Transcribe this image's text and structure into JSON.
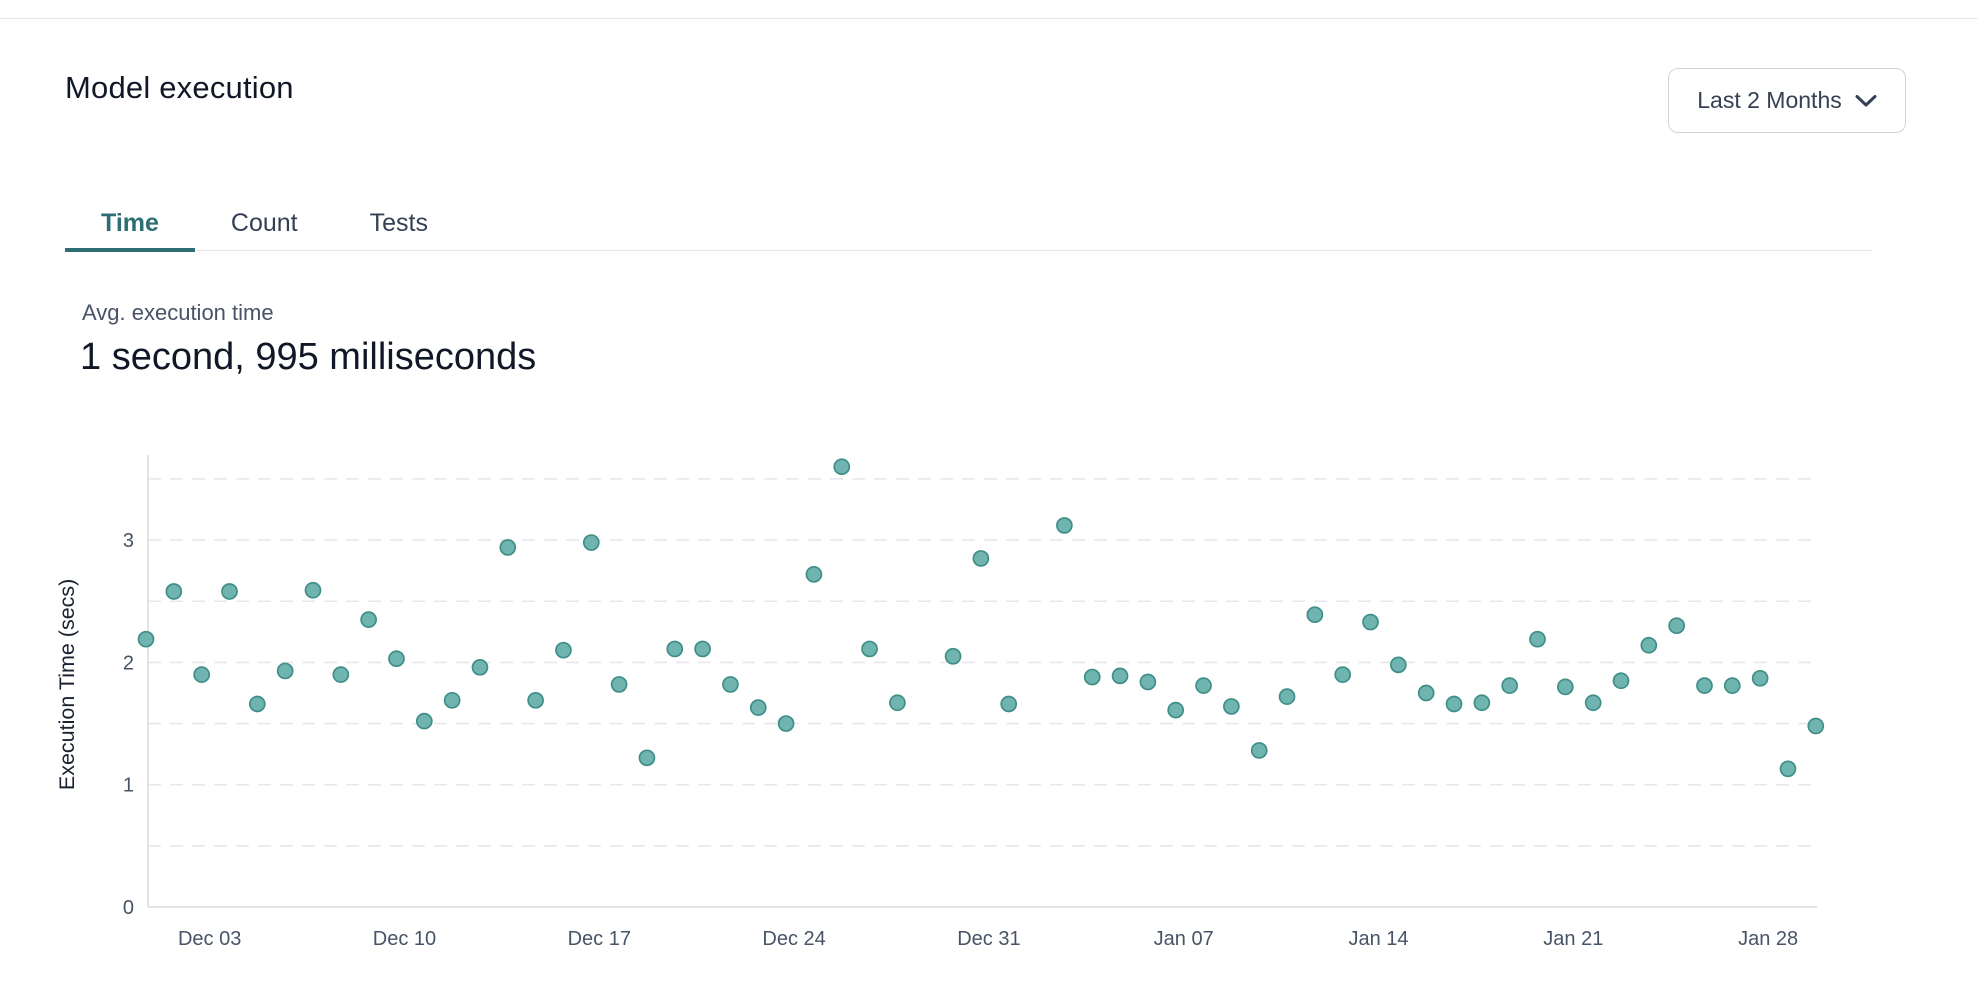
{
  "header": {
    "title": "Model execution",
    "range_selector": {
      "label": "Last 2 Months"
    }
  },
  "tabs": [
    {
      "label": "Time",
      "active": true
    },
    {
      "label": "Count",
      "active": false
    },
    {
      "label": "Tests",
      "active": false
    }
  ],
  "stat": {
    "label": "Avg. execution time",
    "value": "1 second, 995 milliseconds"
  },
  "chart_data": {
    "type": "scatter",
    "title": "",
    "xlabel": "",
    "ylabel": "Execution Time (secs)",
    "ylim": [
      0,
      3.7
    ],
    "y_ticks": [
      0,
      1,
      2,
      3
    ],
    "grid": {
      "style": "dashed-horizontal",
      "interval": 0.5,
      "min": 0.5,
      "max": 3.5
    },
    "legend": "none",
    "x_ticks": [
      {
        "day": 2,
        "label": "Dec 03"
      },
      {
        "day": 9,
        "label": "Dec 10"
      },
      {
        "day": 16,
        "label": "Dec 17"
      },
      {
        "day": 23,
        "label": "Dec 24"
      },
      {
        "day": 30,
        "label": "Dec 31"
      },
      {
        "day": 37,
        "label": "Jan 07"
      },
      {
        "day": 44,
        "label": "Jan 14"
      },
      {
        "day": 51,
        "label": "Jan 21"
      },
      {
        "day": 58,
        "label": "Jan 28"
      }
    ],
    "colors": {
      "point_fill": "#6fb4af",
      "point_stroke": "#3f8e88",
      "gridline": "#e7e7ed",
      "axis_line": "#d8dbe2",
      "tick_text": "#475467",
      "axis_label_text": "#1a2230"
    },
    "points": [
      {
        "day": 0,
        "date": "Dec 01",
        "secs": 2.19
      },
      {
        "day": 1,
        "date": "Dec 02",
        "secs": 2.58
      },
      {
        "day": 2,
        "date": "Dec 03",
        "secs": 1.9
      },
      {
        "day": 3,
        "date": "Dec 04",
        "secs": 2.58
      },
      {
        "day": 4,
        "date": "Dec 05",
        "secs": 1.66
      },
      {
        "day": 5,
        "date": "Dec 06",
        "secs": 1.93
      },
      {
        "day": 6,
        "date": "Dec 07",
        "secs": 2.59
      },
      {
        "day": 7,
        "date": "Dec 08",
        "secs": 1.9
      },
      {
        "day": 8,
        "date": "Dec 09",
        "secs": 2.35
      },
      {
        "day": 9,
        "date": "Dec 10",
        "secs": 2.03
      },
      {
        "day": 10,
        "date": "Dec 11",
        "secs": 1.52
      },
      {
        "day": 11,
        "date": "Dec 12",
        "secs": 1.69
      },
      {
        "day": 12,
        "date": "Dec 13",
        "secs": 1.96
      },
      {
        "day": 13,
        "date": "Dec 14",
        "secs": 2.94
      },
      {
        "day": 14,
        "date": "Dec 15",
        "secs": 1.69
      },
      {
        "day": 15,
        "date": "Dec 16",
        "secs": 2.1
      },
      {
        "day": 16,
        "date": "Dec 17",
        "secs": 2.98
      },
      {
        "day": 17,
        "date": "Dec 18",
        "secs": 1.82
      },
      {
        "day": 18,
        "date": "Dec 19",
        "secs": 1.22
      },
      {
        "day": 19,
        "date": "Dec 20",
        "secs": 2.11
      },
      {
        "day": 20,
        "date": "Dec 21",
        "secs": 2.11
      },
      {
        "day": 21,
        "date": "Dec 22",
        "secs": 1.82
      },
      {
        "day": 22,
        "date": "Dec 23",
        "secs": 1.63
      },
      {
        "day": 23,
        "date": "Dec 24",
        "secs": 1.5
      },
      {
        "day": 24,
        "date": "Dec 25",
        "secs": 2.72
      },
      {
        "day": 25,
        "date": "Dec 26",
        "secs": 3.6
      },
      {
        "day": 26,
        "date": "Dec 27",
        "secs": 2.11
      },
      {
        "day": 27,
        "date": "Dec 28",
        "secs": 1.67
      },
      {
        "day": 29,
        "date": "Dec 30",
        "secs": 2.05
      },
      {
        "day": 30,
        "date": "Dec 31",
        "secs": 2.85
      },
      {
        "day": 31,
        "date": "Jan 01",
        "secs": 1.66
      },
      {
        "day": 33,
        "date": "Jan 03",
        "secs": 3.12
      },
      {
        "day": 34,
        "date": "Jan 04",
        "secs": 1.88
      },
      {
        "day": 35,
        "date": "Jan 05",
        "secs": 1.89
      },
      {
        "day": 36,
        "date": "Jan 06",
        "secs": 1.84
      },
      {
        "day": 37,
        "date": "Jan 07",
        "secs": 1.61
      },
      {
        "day": 38,
        "date": "Jan 08",
        "secs": 1.81
      },
      {
        "day": 39,
        "date": "Jan 09",
        "secs": 1.64
      },
      {
        "day": 40,
        "date": "Jan 10",
        "secs": 1.28
      },
      {
        "day": 41,
        "date": "Jan 11",
        "secs": 1.72
      },
      {
        "day": 42,
        "date": "Jan 12",
        "secs": 2.39
      },
      {
        "day": 43,
        "date": "Jan 13",
        "secs": 1.9
      },
      {
        "day": 44,
        "date": "Jan 14",
        "secs": 2.33
      },
      {
        "day": 45,
        "date": "Jan 15",
        "secs": 1.98
      },
      {
        "day": 46,
        "date": "Jan 16",
        "secs": 1.75
      },
      {
        "day": 47,
        "date": "Jan 17",
        "secs": 1.66
      },
      {
        "day": 48,
        "date": "Jan 18",
        "secs": 1.67
      },
      {
        "day": 49,
        "date": "Jan 19",
        "secs": 1.81
      },
      {
        "day": 50,
        "date": "Jan 20",
        "secs": 2.19
      },
      {
        "day": 51,
        "date": "Jan 21",
        "secs": 1.8
      },
      {
        "day": 52,
        "date": "Jan 22",
        "secs": 1.67
      },
      {
        "day": 53,
        "date": "Jan 23",
        "secs": 1.85
      },
      {
        "day": 54,
        "date": "Jan 24",
        "secs": 2.14
      },
      {
        "day": 55,
        "date": "Jan 25",
        "secs": 2.3
      },
      {
        "day": 56,
        "date": "Jan 26",
        "secs": 1.81
      },
      {
        "day": 57,
        "date": "Jan 27",
        "secs": 1.81
      },
      {
        "day": 58,
        "date": "Jan 28",
        "secs": 1.87
      },
      {
        "day": 59,
        "date": "Jan 29",
        "secs": 1.13
      },
      {
        "day": 60,
        "date": "Jan 30",
        "secs": 1.48
      }
    ]
  }
}
